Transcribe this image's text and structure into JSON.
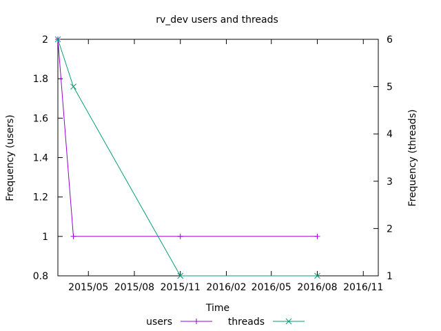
{
  "chart_data": {
    "type": "line",
    "title": "rv_dev users and threads",
    "xlabel": "Time",
    "ylabel": "Frequency (users)",
    "y2label": "Frequency (threads)",
    "x_tick_labels": [
      "2015/05",
      "2015/08",
      "2015/11",
      "2016/02",
      "2016/05",
      "2016/08",
      "2016/11"
    ],
    "x_tick_dates": [
      "2015-05-01",
      "2015-08-01",
      "2015-11-01",
      "2016-02-01",
      "2016-05-01",
      "2016-08-01",
      "2016-11-01"
    ],
    "xlim": [
      "2015-03-01",
      "2016-12-01"
    ],
    "ylim": [
      0.8,
      2
    ],
    "y_ticks": [
      "0.8",
      "1",
      "1.2",
      "1.4",
      "1.6",
      "1.8",
      "2"
    ],
    "y2lim": [
      1,
      6
    ],
    "y2_ticks": [
      "1",
      "2",
      "3",
      "4",
      "5",
      "6"
    ],
    "grid": false,
    "legend_position": "bottom-center",
    "series": [
      {
        "name": "users",
        "axis": "left",
        "color": "#9400d3",
        "marker": "plus",
        "x": [
          "2015-03-01",
          "2015-04-01",
          "2015-11-01",
          "2016-08-01"
        ],
        "y": [
          2,
          1,
          1,
          1
        ]
      },
      {
        "name": "threads",
        "axis": "right",
        "color": "#009e73",
        "marker": "cross",
        "x": [
          "2015-03-01",
          "2015-04-01",
          "2015-11-01",
          "2016-08-01"
        ],
        "y": [
          6,
          5,
          1,
          1
        ]
      }
    ]
  }
}
